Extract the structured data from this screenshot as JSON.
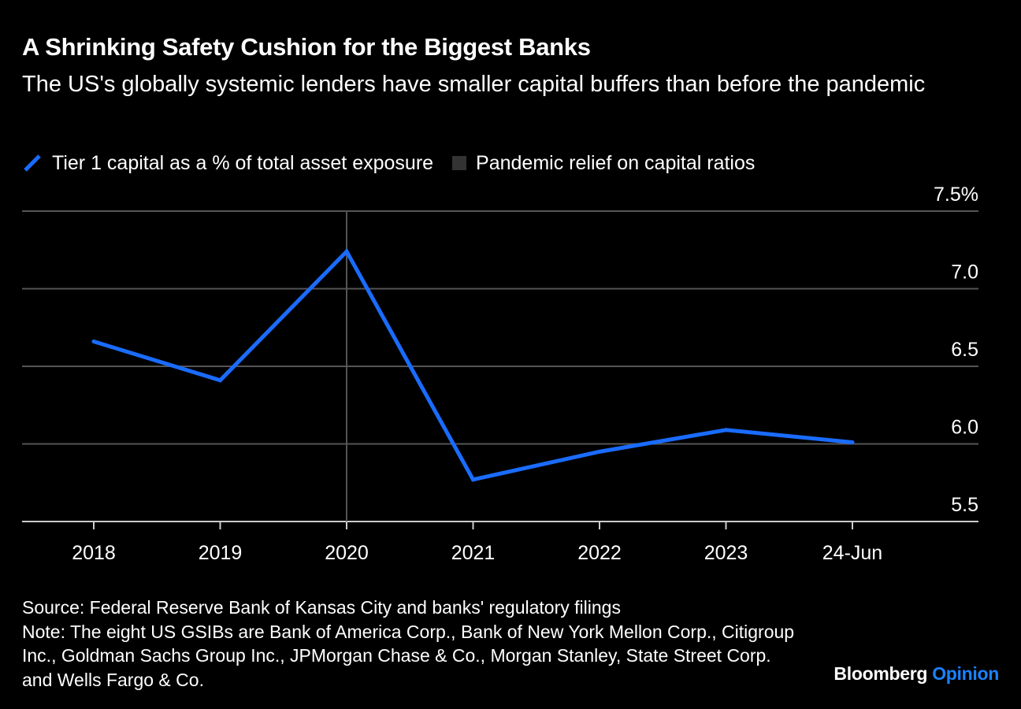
{
  "header": {
    "title": "A Shrinking Safety Cushion for the Biggest Banks",
    "subtitle": "The US's globally systemic lenders have smaller capital buffers than before the pandemic"
  },
  "legend": {
    "series_label": "Tier 1 capital as a % of total asset exposure",
    "relief_label": "Pandemic relief on capital ratios"
  },
  "colors": {
    "background": "#000000",
    "series": "#1a6cff",
    "gridline": "#555555",
    "relief_marker": "#555555",
    "relief_swatch": "#333333",
    "brand_accent": "#1a82ff"
  },
  "chart_data": {
    "type": "line",
    "categories": [
      "2018",
      "2019",
      "2020",
      "2021",
      "2022",
      "2023",
      "24-Jun"
    ],
    "series": [
      {
        "name": "Tier 1 capital as a % of total asset exposure",
        "values": [
          6.66,
          6.41,
          7.24,
          5.77,
          5.95,
          6.09,
          6.01
        ]
      }
    ],
    "ylim": [
      5.5,
      7.5
    ],
    "yticks": [
      5.5,
      6.0,
      6.5,
      7.0,
      7.5
    ],
    "ytick_labels": [
      "5.5",
      "6.0",
      "6.5",
      "7.0",
      "7.5%"
    ],
    "y_axis_position": "right",
    "grid": true,
    "vertical_marker": {
      "category": "2020",
      "label": "Pandemic relief on capital ratios"
    }
  },
  "footer": {
    "source": "Source: Federal Reserve Bank of Kansas City and banks' regulatory filings",
    "note": "Note: The eight US GSIBs are Bank of America Corp., Bank of New York Mellon Corp., Citigroup Inc., Goldman Sachs Group Inc., JPMorgan Chase & Co., Morgan Stanley, State Street Corp. and Wells Fargo & Co."
  },
  "brand": {
    "name": "Bloomberg",
    "section": "Opinion"
  }
}
